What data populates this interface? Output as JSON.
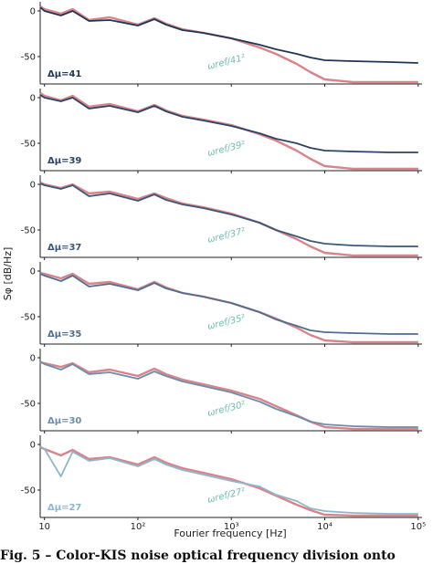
{
  "figure": {
    "ylabel": "Sφ [dB/Hz]",
    "xlabel": "Fourier frequency [Hz]",
    "caption": "Fig. 5 – Color-KIS noise optical frequency division onto"
  },
  "colors": {
    "reference": "#d9848a",
    "panels": [
      "#1f3557",
      "#2a4467",
      "#3a5878",
      "#4f6f8e",
      "#6b8eaa",
      "#8db7cc"
    ],
    "ref_label": "#6fc0b0"
  },
  "chart_data": {
    "type": "line",
    "x_scale": "log",
    "xlim": [
      9,
      110000
    ],
    "x_ticks": [
      "10",
      "10²",
      "10³",
      "10⁴",
      "10⁵"
    ],
    "x_tick_values": [
      10,
      100,
      1000,
      10000,
      100000
    ],
    "ylim": [
      -80,
      10
    ],
    "y_ticks": [
      "0",
      "-50"
    ],
    "y_tick_values": [
      0,
      -50
    ],
    "panels": [
      {
        "label": "Δμ=41",
        "ref_label": "ωref/41²",
        "series": [
          {
            "name": "",
            "x": [
              9,
              10,
              15,
              20,
              30,
              50,
              100,
              150,
              200,
              300,
              500,
              1000,
              2000,
              3000,
              5000,
              7000,
              10000,
              20000,
              50000,
              100000
            ],
            "y": [
              5,
              2,
              -3,
              2,
              -10,
              -7,
              -15,
              -8,
              -14,
              -20,
              -24,
              -30,
              -40,
              -47,
              -58,
              -67,
              -75,
              -78,
              -78,
              -78
            ]
          },
          {
            "name": "",
            "x": [
              9,
              10,
              15,
              20,
              30,
              50,
              100,
              150,
              200,
              300,
              500,
              1000,
              2000,
              3000,
              5000,
              7000,
              10000,
              20000,
              50000,
              100000
            ],
            "y": [
              4,
              0,
              -5,
              0,
              -11,
              -10,
              -16,
              -9,
              -15,
              -21,
              -24,
              -30,
              -37,
              -42,
              -47,
              -51,
              -54,
              -55,
              -56,
              -57
            ]
          }
        ]
      },
      {
        "label": "Δμ=39",
        "ref_label": "ωref/39²",
        "series": [
          {
            "name": "",
            "x": [
              9,
              10,
              15,
              20,
              30,
              50,
              100,
              150,
              200,
              300,
              500,
              1000,
              2000,
              3000,
              5000,
              7000,
              10000,
              20000,
              50000,
              100000
            ],
            "y": [
              5,
              2,
              -3,
              2,
              -10,
              -7,
              -15,
              -8,
              -14,
              -20,
              -24,
              -30,
              -40,
              -47,
              -58,
              -67,
              -75,
              -78,
              -78,
              -78
            ]
          },
          {
            "name": "",
            "x": [
              9,
              10,
              15,
              20,
              30,
              50,
              100,
              150,
              200,
              300,
              500,
              1000,
              2000,
              3000,
              5000,
              7000,
              10000,
              20000,
              50000,
              100000
            ],
            "y": [
              3,
              0,
              -4,
              0,
              -12,
              -9,
              -16,
              -9,
              -15,
              -21,
              -25,
              -31,
              -39,
              -45,
              -50,
              -55,
              -58,
              -59,
              -60,
              -60
            ]
          }
        ]
      },
      {
        "label": "Δμ=37",
        "ref_label": "ωref/37²",
        "series": [
          {
            "name": "",
            "x": [
              9,
              10,
              15,
              20,
              30,
              50,
              100,
              150,
              200,
              300,
              500,
              1000,
              2000,
              3000,
              5000,
              7000,
              10000,
              20000,
              50000,
              100000
            ],
            "y": [
              2,
              0,
              -4,
              0,
              -10,
              -8,
              -16,
              -10,
              -15,
              -21,
              -25,
              -32,
              -42,
              -50,
              -60,
              -68,
              -75,
              -78,
              -78,
              -78
            ]
          },
          {
            "name": "",
            "x": [
              9,
              10,
              15,
              20,
              30,
              50,
              100,
              150,
              200,
              300,
              500,
              1000,
              2000,
              3000,
              5000,
              7000,
              10000,
              20000,
              50000,
              100000
            ],
            "y": [
              1,
              -1,
              -5,
              -1,
              -13,
              -10,
              -18,
              -11,
              -17,
              -22,
              -26,
              -33,
              -42,
              -50,
              -57,
              -62,
              -65,
              -67,
              -68,
              -68
            ]
          }
        ]
      },
      {
        "label": "Δμ=35",
        "ref_label": "ωref/35²",
        "series": [
          {
            "name": "",
            "x": [
              9,
              10,
              15,
              20,
              30,
              50,
              100,
              150,
              200,
              300,
              500,
              1000,
              2000,
              3000,
              5000,
              7000,
              10000,
              20000,
              50000,
              100000
            ],
            "y": [
              -2,
              -3,
              -8,
              -3,
              -14,
              -12,
              -20,
              -12,
              -18,
              -24,
              -28,
              -35,
              -45,
              -52,
              -62,
              -70,
              -76,
              -78,
              -78,
              -78
            ]
          },
          {
            "name": "",
            "x": [
              9,
              10,
              15,
              20,
              30,
              50,
              100,
              150,
              200,
              300,
              500,
              1000,
              2000,
              3000,
              5000,
              7000,
              10000,
              20000,
              50000,
              100000
            ],
            "y": [
              -3,
              -5,
              -11,
              -5,
              -17,
              -14,
              -21,
              -13,
              -19,
              -24,
              -28,
              -35,
              -45,
              -53,
              -60,
              -65,
              -67,
              -68,
              -69,
              -69
            ]
          }
        ]
      },
      {
        "label": "Δμ=30",
        "ref_label": "ωref/30²",
        "series": [
          {
            "name": "",
            "x": [
              9,
              10,
              15,
              20,
              30,
              50,
              100,
              150,
              200,
              300,
              500,
              1000,
              2000,
              3000,
              5000,
              7000,
              10000,
              20000,
              50000,
              100000
            ],
            "y": [
              -5,
              -6,
              -10,
              -6,
              -16,
              -13,
              -20,
              -12,
              -18,
              -24,
              -29,
              -36,
              -45,
              -53,
              -63,
              -70,
              -76,
              -78,
              -78,
              -78
            ]
          },
          {
            "name": "",
            "x": [
              9,
              10,
              15,
              20,
              30,
              50,
              100,
              150,
              200,
              300,
              500,
              1000,
              2000,
              3000,
              5000,
              7000,
              10000,
              20000,
              50000,
              100000
            ],
            "y": [
              -4,
              -7,
              -13,
              -7,
              -18,
              -16,
              -23,
              -15,
              -20,
              -26,
              -31,
              -38,
              -48,
              -56,
              -64,
              -70,
              -73,
              -75,
              -76,
              -76
            ]
          }
        ]
      },
      {
        "label": "Δμ=27",
        "ref_label": "ωref/27²",
        "series": [
          {
            "name": "",
            "x": [
              9,
              10,
              15,
              20,
              30,
              50,
              100,
              150,
              200,
              300,
              500,
              1000,
              2000,
              3000,
              5000,
              7000,
              10000,
              20000,
              50000,
              100000
            ],
            "y": [
              -3,
              -5,
              -12,
              -6,
              -16,
              -14,
              -22,
              -14,
              -20,
              -26,
              -31,
              -38,
              -48,
              -56,
              -66,
              -72,
              -77,
              -78,
              -78,
              -78
            ]
          },
          {
            "name": "",
            "x": [
              9,
              10,
              15,
              20,
              30,
              50,
              100,
              150,
              200,
              300,
              500,
              1000,
              2000,
              3000,
              5000,
              7000,
              10000,
              20000,
              50000,
              100000
            ],
            "y": [
              -2,
              -5,
              -35,
              -8,
              -18,
              -15,
              -24,
              -16,
              -22,
              -28,
              -33,
              -40,
              -46,
              -55,
              -62,
              -70,
              -73,
              -75,
              -76,
              -76
            ]
          }
        ]
      }
    ]
  }
}
